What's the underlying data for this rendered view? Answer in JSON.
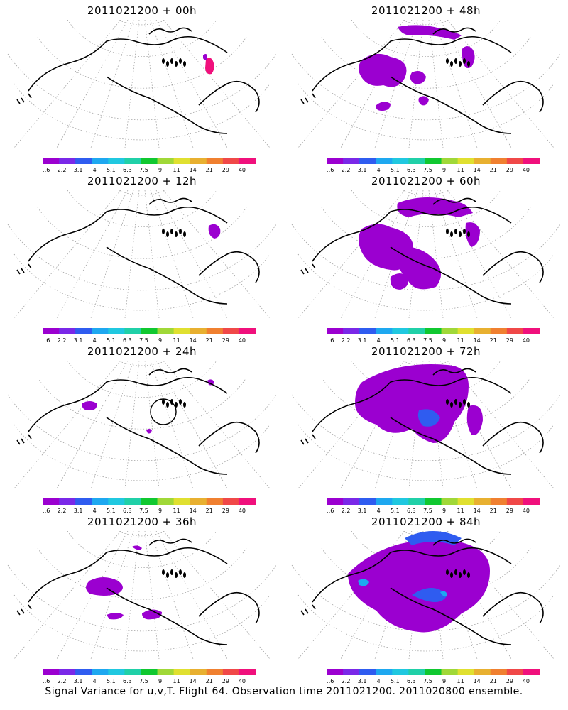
{
  "panels": [
    {
      "title": "2011021200 + 00h"
    },
    {
      "title": "2011021200 + 48h"
    },
    {
      "title": "2011021200 + 12h"
    },
    {
      "title": "2011021200 + 60h"
    },
    {
      "title": "2011021200 + 24h"
    },
    {
      "title": "2011021200 + 72h"
    },
    {
      "title": "2011021200 + 36h"
    },
    {
      "title": "2011021200 + 84h"
    }
  ],
  "colorbar": {
    "labels": [
      "1.6",
      "2.2",
      "3.1",
      "4",
      "5.1",
      "6.3",
      "7.5",
      "9",
      "11",
      "14",
      "21",
      "29",
      "40"
    ],
    "colors": [
      "#9b00d0",
      "#7a28e8",
      "#2f5cf0",
      "#1ea8f0",
      "#20c8e0",
      "#20d0a8",
      "#10c830",
      "#a0d838",
      "#e0e030",
      "#e8b030",
      "#f08030",
      "#f04848",
      "#f0107c"
    ]
  },
  "footer": "Signal Variance for u,v,T. Flight 64. Observation time 2011021200. 2011020800 ensemble."
}
